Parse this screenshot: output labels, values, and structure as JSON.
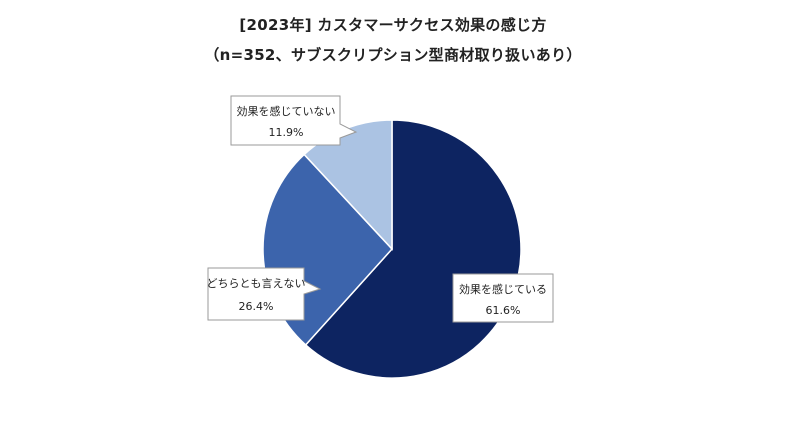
{
  "chart_data": {
    "type": "pie",
    "title_lines": [
      "[2023年] カスタマーサクセス効果の感じ方",
      "（n=352、サブスクリプション型商材取り扱いあり）"
    ],
    "slices": [
      {
        "label": "効果を感じている",
        "value": 61.6,
        "value_text": "61.6%",
        "color": "#0d2461"
      },
      {
        "label": "どちらとも言えない",
        "value": 26.4,
        "value_text": "26.4%",
        "color": "#3c64ac"
      },
      {
        "label": "効果を感じていない",
        "value": 11.9,
        "value_text": "11.9%",
        "color": "#abc3e3"
      }
    ],
    "start_angle_deg": 0,
    "direction": "clockwise",
    "slice_border_color": "#ffffff",
    "callout_border_color": "#9a9a9a"
  }
}
